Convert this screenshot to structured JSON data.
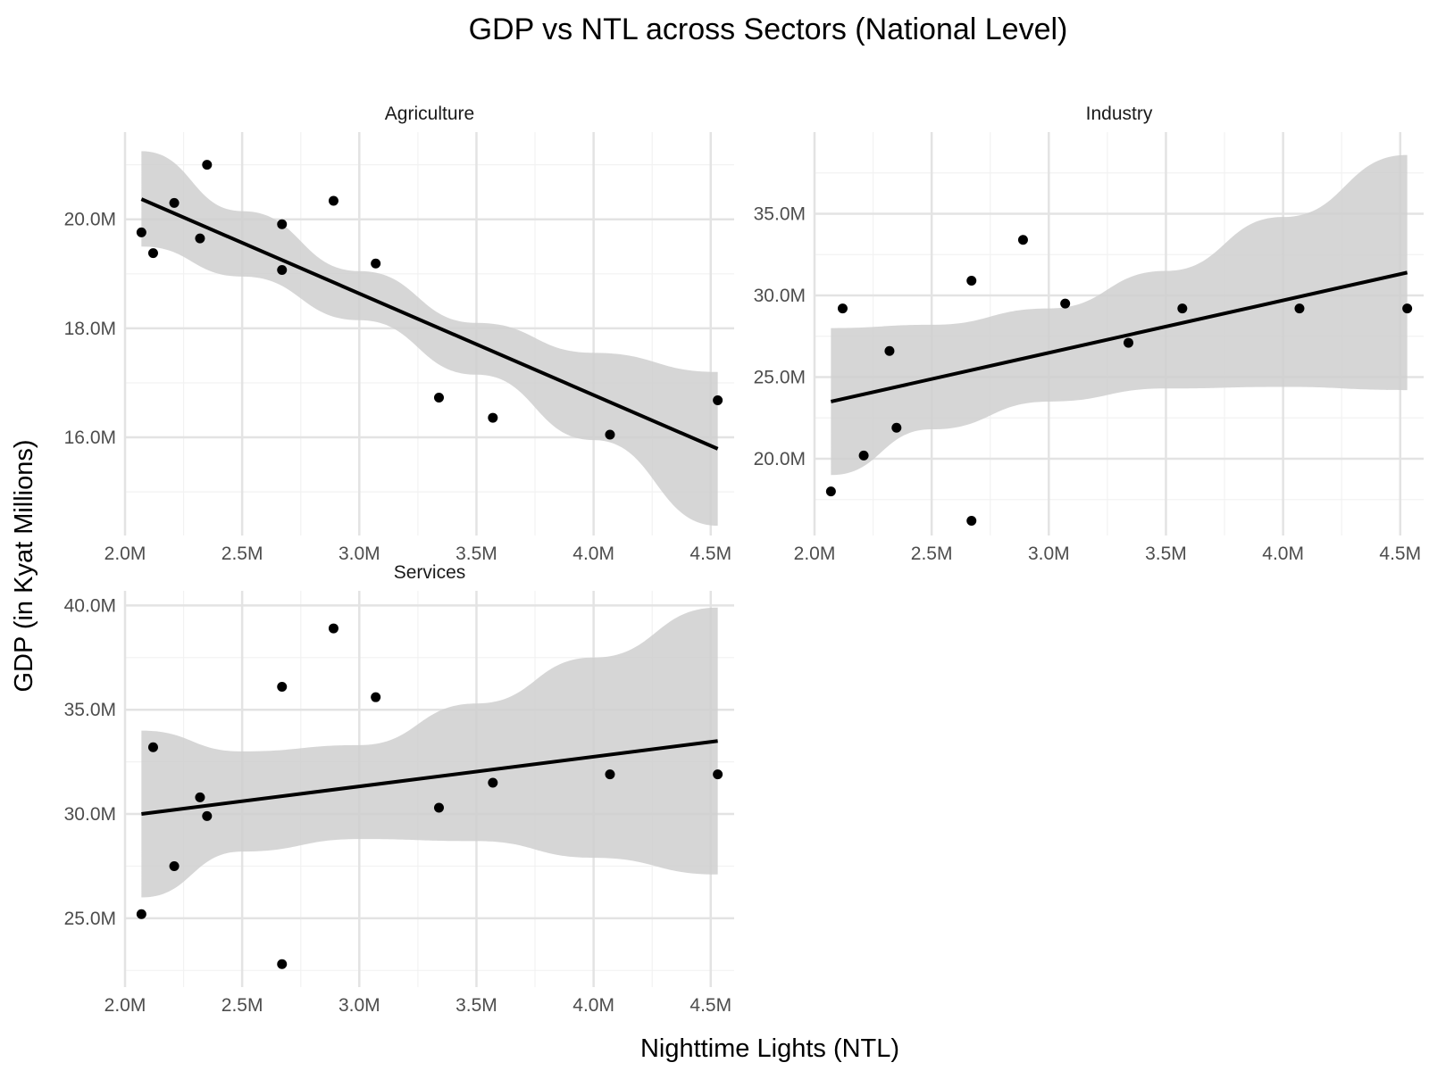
{
  "chart_data": {
    "type": "scatter",
    "title": "GDP vs NTL across Sectors (National Level)",
    "xlabel": "Nighttime Lights (NTL)",
    "ylabel": "GDP (in Kyat Millions)",
    "facets": [
      {
        "name": "Agriculture",
        "xlim": [
          2.0,
          4.6
        ],
        "ylim": [
          14.2,
          21.6
        ],
        "x_ticks": [
          2.0,
          2.5,
          3.0,
          3.5,
          4.0,
          4.5
        ],
        "x_tick_labels": [
          "2.0M",
          "2.5M",
          "3.0M",
          "3.5M",
          "4.0M",
          "4.5M"
        ],
        "y_ticks": [
          16,
          18,
          20
        ],
        "y_tick_labels": [
          "16.0M",
          "18.0M",
          "20.0M"
        ],
        "points": [
          [
            2.07,
            19.76
          ],
          [
            2.12,
            19.38
          ],
          [
            2.21,
            20.3
          ],
          [
            2.32,
            19.65
          ],
          [
            2.35,
            21.0
          ],
          [
            2.67,
            19.91
          ],
          [
            2.67,
            19.07
          ],
          [
            2.89,
            20.34
          ],
          [
            3.07,
            19.19
          ],
          [
            3.34,
            16.73
          ],
          [
            3.57,
            16.36
          ],
          [
            4.07,
            16.05
          ],
          [
            4.53,
            16.68
          ]
        ],
        "fit": [
          [
            2.07,
            20.37
          ],
          [
            4.53,
            15.79
          ]
        ],
        "ci_upper": [
          [
            2.07,
            21.25
          ],
          [
            2.5,
            20.15
          ],
          [
            3.0,
            19.05
          ],
          [
            3.5,
            18.1
          ],
          [
            4.0,
            17.55
          ],
          [
            4.53,
            17.2
          ]
        ],
        "ci_lower": [
          [
            2.07,
            19.5
          ],
          [
            2.5,
            18.95
          ],
          [
            3.0,
            18.15
          ],
          [
            3.5,
            17.15
          ],
          [
            4.0,
            15.95
          ],
          [
            4.53,
            14.38
          ]
        ]
      },
      {
        "name": "Industry",
        "xlim": [
          2.0,
          4.6
        ],
        "ylim": [
          15.3,
          40.0
        ],
        "x_ticks": [
          2.0,
          2.5,
          3.0,
          3.5,
          4.0,
          4.5
        ],
        "x_tick_labels": [
          "2.0M",
          "2.5M",
          "3.0M",
          "3.5M",
          "4.0M",
          "4.5M"
        ],
        "y_ticks": [
          20,
          25,
          30,
          35
        ],
        "y_tick_labels": [
          "20.0M",
          "25.0M",
          "30.0M",
          "35.0M"
        ],
        "points": [
          [
            2.07,
            18.0
          ],
          [
            2.12,
            29.2
          ],
          [
            2.21,
            20.2
          ],
          [
            2.32,
            26.6
          ],
          [
            2.35,
            21.9
          ],
          [
            2.67,
            30.9
          ],
          [
            2.67,
            16.2
          ],
          [
            2.89,
            33.4
          ],
          [
            3.07,
            29.5
          ],
          [
            3.34,
            27.1
          ],
          [
            3.57,
            29.2
          ],
          [
            4.07,
            29.2
          ],
          [
            4.53,
            29.2
          ]
        ],
        "fit": [
          [
            2.07,
            23.5
          ],
          [
            4.53,
            31.4
          ]
        ],
        "ci_upper": [
          [
            2.07,
            28.0
          ],
          [
            2.5,
            28.2
          ],
          [
            3.0,
            29.2
          ],
          [
            3.5,
            31.5
          ],
          [
            4.0,
            34.8
          ],
          [
            4.53,
            38.6
          ]
        ],
        "ci_lower": [
          [
            2.07,
            19.0
          ],
          [
            2.5,
            21.8
          ],
          [
            3.0,
            23.5
          ],
          [
            3.5,
            24.3
          ],
          [
            4.0,
            24.4
          ],
          [
            4.53,
            24.2
          ]
        ]
      },
      {
        "name": "Services",
        "xlim": [
          2.0,
          4.6
        ],
        "ylim": [
          21.7,
          40.7
        ],
        "x_ticks": [
          2.0,
          2.5,
          3.0,
          3.5,
          4.0,
          4.5
        ],
        "x_tick_labels": [
          "2.0M",
          "2.5M",
          "3.0M",
          "3.5M",
          "4.0M",
          "4.5M"
        ],
        "y_ticks": [
          25,
          30,
          35,
          40
        ],
        "y_tick_labels": [
          "25.0M",
          "30.0M",
          "35.0M",
          "40.0M"
        ],
        "points": [
          [
            2.07,
            25.2
          ],
          [
            2.12,
            33.2
          ],
          [
            2.21,
            27.5
          ],
          [
            2.32,
            30.8
          ],
          [
            2.35,
            29.9
          ],
          [
            2.67,
            36.1
          ],
          [
            2.67,
            22.8
          ],
          [
            2.89,
            38.9
          ],
          [
            3.07,
            35.6
          ],
          [
            3.34,
            30.3
          ],
          [
            3.57,
            31.5
          ],
          [
            4.07,
            31.9
          ],
          [
            4.53,
            31.9
          ]
        ],
        "fit": [
          [
            2.07,
            30.0
          ],
          [
            4.53,
            33.5
          ]
        ],
        "ci_upper": [
          [
            2.07,
            34.0
          ],
          [
            2.5,
            33.0
          ],
          [
            3.0,
            33.3
          ],
          [
            3.5,
            35.3
          ],
          [
            4.0,
            37.5
          ],
          [
            4.53,
            39.9
          ]
        ],
        "ci_lower": [
          [
            2.07,
            26.0
          ],
          [
            2.5,
            28.2
          ],
          [
            3.0,
            28.8
          ],
          [
            3.5,
            28.7
          ],
          [
            4.0,
            27.9
          ],
          [
            4.53,
            27.1
          ]
        ]
      }
    ],
    "grid": true,
    "legend": "none"
  }
}
